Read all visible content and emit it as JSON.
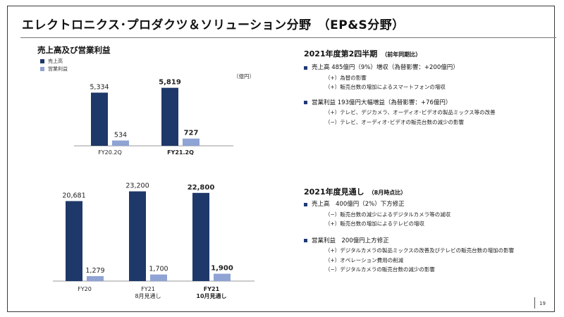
{
  "title": "エレクトロニクス･プロダクツ＆ソリューション分野　（EP&S分野）",
  "page_number": "19",
  "colors": {
    "sales": "#1e3869",
    "profit": "#8fa3d4"
  },
  "left": {
    "heading": "売上高及び営業利益",
    "legend": {
      "sales": "売上高",
      "profit": "営業利益"
    },
    "unit": "（億円）"
  },
  "chart_data": [
    {
      "type": "bar",
      "categories": [
        [
          "FY20.2Q"
        ],
        [
          "FY21.2Q"
        ]
      ],
      "bold": [
        false,
        true
      ],
      "series": [
        {
          "name": "売上高",
          "values": [
            5334,
            5819
          ]
        },
        {
          "name": "営業利益",
          "values": [
            534,
            727
          ]
        }
      ],
      "labels": [
        [
          "5,334",
          "534"
        ],
        [
          "5,819",
          "727"
        ]
      ],
      "ylim": [
        0,
        6500
      ]
    },
    {
      "type": "bar",
      "categories": [
        [
          "FY20"
        ],
        [
          "FY21",
          "8月見通し"
        ],
        [
          "FY21",
          "10月見通し"
        ]
      ],
      "bold": [
        false,
        false,
        true
      ],
      "series": [
        {
          "name": "売上高",
          "values": [
            20681,
            23200,
            22800
          ]
        },
        {
          "name": "営業利益",
          "values": [
            1279,
            1700,
            1900
          ]
        }
      ],
      "labels": [
        [
          "20,681",
          "1,279"
        ],
        [
          "23,200",
          "1,700"
        ],
        [
          "22,800",
          "1,900"
        ]
      ],
      "ylim": [
        0,
        25500
      ]
    }
  ],
  "q2": {
    "heading": "2021年度第2四半期",
    "heading_sub": "（前年同期比）",
    "items": [
      {
        "text": "売上高 485億円（9%）増収（為替影響：+200億円）",
        "subs": [
          "（+）為替の影響",
          "（+）販売台数の増加によるスマートフォンの増収"
        ]
      },
      {
        "text": "営業利益 193億円大幅増益（為替影響：+76億円）",
        "subs": [
          "（+）テレビ、デジカメラ、オーディオ･ビデオの製品ミックス等の改善",
          "（−）テレビ、オーディオ･ビデオの販売台数の減少の影響"
        ]
      }
    ]
  },
  "fy": {
    "heading": "2021年度見通し",
    "heading_sub": "（8月時点比）",
    "items": [
      {
        "text": "売上高　400億円（2%）下方修正",
        "subs": [
          "（−）販売台数の減少によるデジタルカメラ等の減収",
          "（+）販売台数の増加によるテレビの増収"
        ]
      },
      {
        "text": "営業利益　200億円上方修正",
        "subs": [
          "（+）デジタルカメラの製品ミックスの改善及びテレビの販売台数の増加の影響",
          "（+）オペレーション費用の削減",
          "（−）デジタルカメラの販売台数の減少の影響"
        ]
      }
    ]
  }
}
